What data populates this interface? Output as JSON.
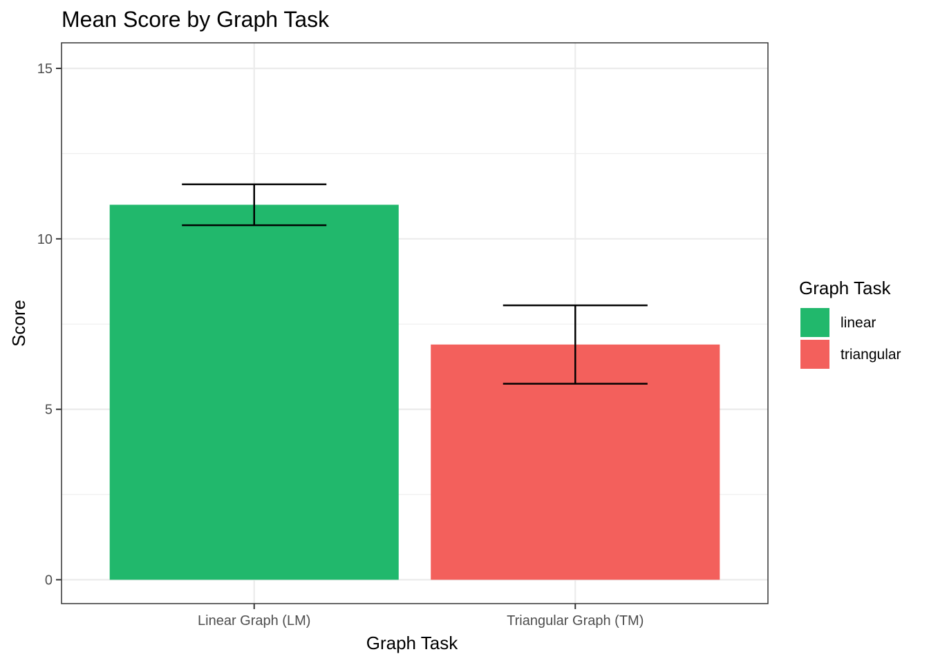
{
  "chart_data": {
    "type": "bar",
    "title": "Mean Score by Graph Task",
    "xlabel": "Graph Task",
    "ylabel": "Score",
    "categories": [
      "Linear Graph (LM)",
      "Triangular Graph (TM)"
    ],
    "values": [
      11.0,
      6.9
    ],
    "error_bars": [
      {
        "low": 10.4,
        "high": 11.6
      },
      {
        "low": 5.75,
        "high": 8.05
      }
    ],
    "fill_groups": [
      "linear",
      "triangular"
    ],
    "colors": [
      "#21B86C",
      "#F3605C"
    ],
    "ylim": [
      -0.7,
      15.75
    ],
    "yticks": [
      0,
      5,
      10,
      15
    ],
    "y_minor_ticks": [
      2.5,
      7.5,
      12.5
    ],
    "grid": true,
    "legend": {
      "title": "Graph Task",
      "placement": "right",
      "entries": [
        {
          "label": "linear",
          "color": "#21B86C"
        },
        {
          "label": "triangular",
          "color": "#F3605C"
        }
      ]
    }
  }
}
